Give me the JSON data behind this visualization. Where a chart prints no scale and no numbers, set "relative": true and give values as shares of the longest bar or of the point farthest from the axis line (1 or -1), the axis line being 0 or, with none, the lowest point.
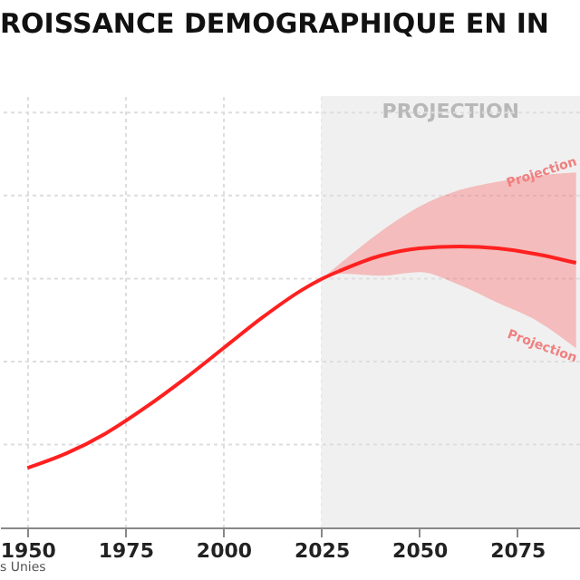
{
  "chart_data": {
    "type": "line",
    "title": "ROISSANCE DEMOGRAPHIQUE EN IN",
    "relative": true,
    "x": [
      1950,
      1960,
      1970,
      1980,
      1990,
      2000,
      2010,
      2020,
      2025,
      2030,
      2040,
      2050,
      2060,
      2070,
      2080,
      2090
    ],
    "series": [
      {
        "color": "#ff2020",
        "values": [
          0.212,
          0.264,
          0.335,
          0.426,
          0.528,
          0.638,
          0.748,
          0.845,
          0.884,
          0.915,
          0.967,
          0.994,
          1.0,
          0.994,
          0.973,
          0.942
        ],
        "lower": [
          null,
          null,
          null,
          null,
          null,
          null,
          null,
          null,
          0.884,
          0.903,
          0.896,
          0.909,
          0.865,
          0.8,
          0.736,
          0.638
        ],
        "upper": [
          null,
          null,
          null,
          null,
          null,
          null,
          null,
          null,
          0.884,
          0.942,
          1.052,
          1.142,
          1.2,
          1.231,
          1.252,
          1.264
        ]
      }
    ],
    "xlim": [
      1943,
      2091
    ],
    "xticks": [
      1950,
      1975,
      2000,
      2025,
      2050,
      2075
    ],
    "bands": [
      {
        "axis": "x",
        "from": 2025,
        "to": 2091,
        "label": "PROJECTION",
        "color": "#f0f0f0"
      }
    ],
    "annotations": [
      "Projection",
      "Projection",
      "s Unies"
    ],
    "grid": true,
    "line_style": "solid",
    "marker": "none"
  }
}
